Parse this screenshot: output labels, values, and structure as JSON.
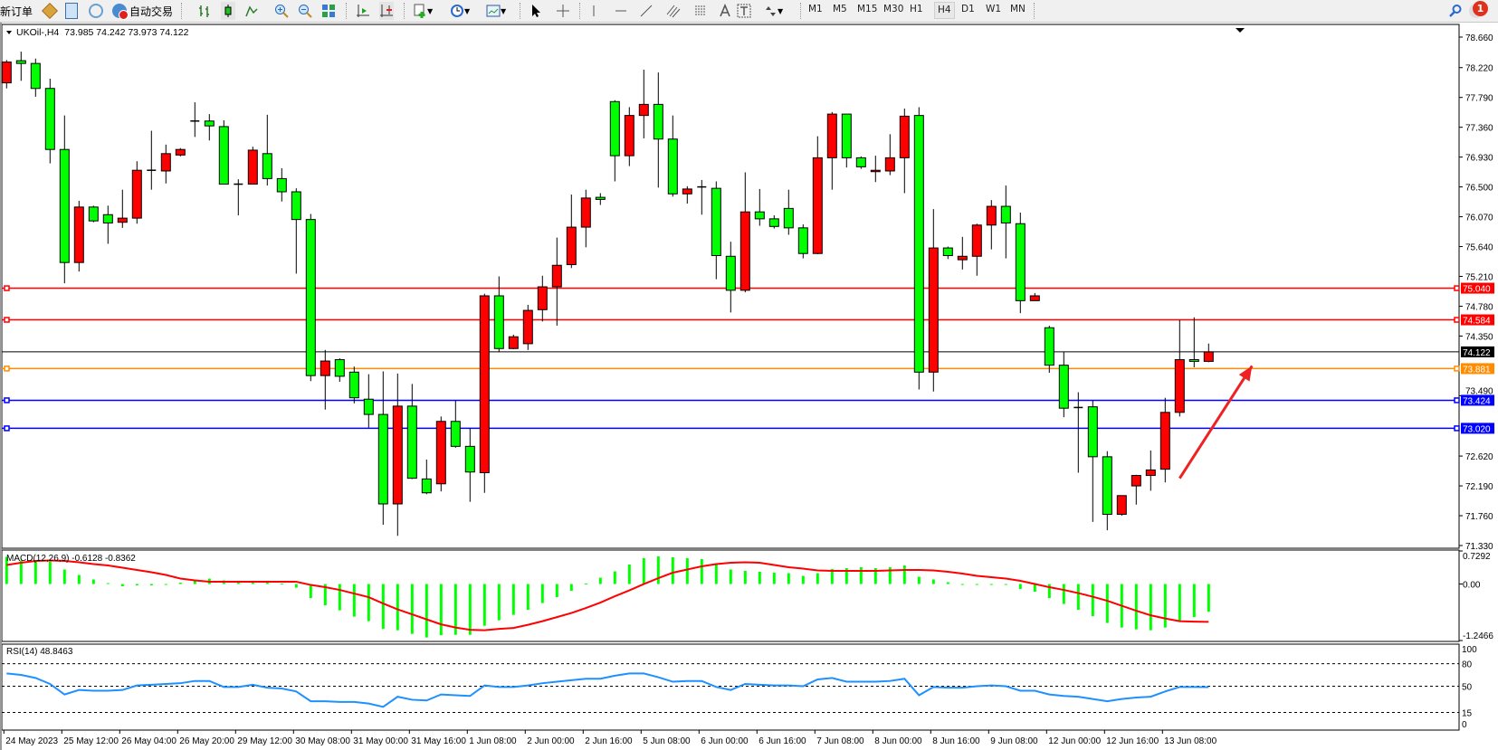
{
  "toolbar": {
    "new_order_label": "新订单",
    "auto_trading_label": "自动交易",
    "timeframes": [
      "M1",
      "M5",
      "M15",
      "M30",
      "H1",
      "H4",
      "D1",
      "W1",
      "MN"
    ],
    "active_timeframe": "H4",
    "notification_count": "1",
    "icons": [
      "market-watch-icon",
      "data-window-icon",
      "navigator-icon",
      "auto-trading-icon",
      "bar-chart-icon",
      "candlestick-icon",
      "line-chart-icon",
      "zoom-in-icon",
      "zoom-out-icon",
      "tile-windows-icon",
      "chart-shift-icon",
      "auto-scroll-icon",
      "new-chart-icon",
      "periods-icon",
      "templates-icon",
      "cursor-icon",
      "crosshair-icon",
      "vertical-line-icon",
      "horizontal-line-icon",
      "trendline-icon",
      "equidistant-channel-icon",
      "fibonacci-icon",
      "text-icon",
      "text-label-icon",
      "arrows-icon",
      "search-icon",
      "chat-icon"
    ]
  },
  "chart": {
    "symbol_header": "UKOil-,H4",
    "header_ohlc": "73.985 74.242 73.973 74.122",
    "up_color": "#ff0000",
    "down_color": "#00ff00",
    "price_ticks": [
      "78.660",
      "78.220",
      "77.790",
      "77.360",
      "76.930",
      "76.500",
      "76.070",
      "75.640",
      "75.210",
      "74.780",
      "74.350",
      "73.490",
      "72.620",
      "72.190",
      "71.760",
      "71.330"
    ],
    "price_tick_values": [
      78.66,
      78.22,
      77.79,
      77.36,
      76.93,
      76.5,
      76.07,
      75.64,
      75.21,
      74.78,
      74.35,
      73.49,
      72.62,
      72.19,
      71.76,
      71.33
    ],
    "price_range": [
      71.33,
      78.66
    ],
    "current_price": {
      "label": "74.122",
      "value": 74.122,
      "color": "#000000"
    },
    "horizontal_lines": [
      {
        "label": "75.040",
        "value": 75.04,
        "color": "#ff0000"
      },
      {
        "label": "74.584",
        "value": 74.584,
        "color": "#ff0000"
      },
      {
        "label": "73.881",
        "value": 73.881,
        "color": "#ff8c00"
      },
      {
        "label": "73.424",
        "value": 73.424,
        "color": "#0000ff"
      },
      {
        "label": "73.020",
        "value": 73.02,
        "color": "#0000ff"
      }
    ],
    "annotation_arrow": {
      "color": "#ee2222",
      "from_bar": 81,
      "from_price": 72.3,
      "to_bar": 86,
      "to_price": 73.92
    },
    "time_labels": [
      "24 May 2023",
      "25 May 12:00",
      "26 May 04:00",
      "26 May 20:00",
      "29 May 12:00",
      "30 May 08:00",
      "31 May 00:00",
      "31 May 16:00",
      "1 Jun 08:00",
      "2 Jun 00:00",
      "2 Jun 16:00",
      "5 Jun 08:00",
      "6 Jun 00:00",
      "6 Jun 16:00",
      "7 Jun 08:00",
      "8 Jun 00:00",
      "8 Jun 16:00",
      "9 Jun 08:00",
      "12 Jun 00:00",
      "12 Jun 16:00",
      "13 Jun 08:00"
    ]
  },
  "macd": {
    "label": "MACD(12,26,9) -0.6128 -0.8362",
    "ticks": [
      "0.7292",
      "0.00",
      "-1.2466"
    ],
    "range": [
      -1.2466,
      0.7292
    ],
    "histogram_color": "#00ff00",
    "signal_color": "#ff0000"
  },
  "rsi": {
    "label": "RSI(14) 48.8463",
    "ticks": [
      "100",
      "80",
      "50",
      "15",
      "0"
    ],
    "levels": [
      80,
      50,
      15
    ],
    "line_color": "#1e90ff"
  },
  "chart_data": {
    "type": "candlestick",
    "ohlc_format": [
      "open",
      "high",
      "low",
      "close"
    ],
    "ohlc": [
      [
        78.0,
        78.33,
        77.92,
        78.3
      ],
      [
        78.32,
        78.45,
        78.03,
        78.28
      ],
      [
        78.28,
        78.35,
        77.8,
        77.92
      ],
      [
        77.92,
        78.06,
        76.84,
        77.04
      ],
      [
        77.04,
        77.53,
        75.11,
        75.41
      ],
      [
        75.41,
        76.3,
        75.28,
        76.21
      ],
      [
        76.21,
        76.23,
        75.99,
        76.01
      ],
      [
        76.1,
        76.23,
        75.68,
        75.98
      ],
      [
        75.99,
        76.46,
        75.91,
        76.05
      ],
      [
        76.05,
        76.87,
        75.97,
        76.74
      ],
      [
        76.74,
        77.31,
        76.46,
        76.74
      ],
      [
        76.73,
        77.11,
        76.55,
        76.98
      ],
      [
        76.96,
        77.06,
        76.94,
        77.04
      ],
      [
        77.45,
        77.72,
        77.22,
        77.45
      ],
      [
        77.45,
        77.55,
        77.17,
        77.38
      ],
      [
        77.37,
        77.46,
        76.54,
        76.54
      ],
      [
        76.54,
        76.61,
        76.09,
        76.54
      ],
      [
        76.54,
        77.08,
        76.54,
        77.03
      ],
      [
        76.98,
        77.54,
        76.52,
        76.62
      ],
      [
        76.62,
        76.77,
        76.29,
        76.43
      ],
      [
        76.43,
        76.48,
        75.25,
        76.03
      ],
      [
        76.03,
        76.11,
        73.7,
        73.78
      ],
      [
        73.78,
        74.15,
        73.29,
        73.99
      ],
      [
        74.01,
        74.03,
        73.69,
        73.77
      ],
      [
        73.83,
        73.91,
        73.38,
        73.46
      ],
      [
        73.44,
        73.8,
        73.03,
        73.22
      ],
      [
        73.22,
        73.84,
        71.63,
        71.93
      ],
      [
        71.93,
        73.81,
        71.47,
        73.34
      ],
      [
        73.34,
        73.66,
        72.29,
        72.3
      ],
      [
        72.29,
        72.57,
        72.07,
        72.09
      ],
      [
        72.22,
        73.19,
        72.11,
        73.12
      ],
      [
        73.12,
        73.42,
        72.74,
        72.76
      ],
      [
        72.76,
        73.02,
        71.96,
        72.39
      ],
      [
        72.38,
        74.96,
        72.09,
        74.93
      ],
      [
        74.93,
        75.21,
        74.12,
        74.17
      ],
      [
        74.17,
        74.37,
        74.16,
        74.34
      ],
      [
        74.24,
        74.8,
        74.15,
        74.72
      ],
      [
        74.73,
        75.22,
        74.56,
        75.06
      ],
      [
        75.06,
        75.77,
        74.5,
        75.37
      ],
      [
        75.38,
        76.39,
        75.33,
        75.92
      ],
      [
        75.92,
        76.46,
        75.63,
        76.34
      ],
      [
        76.35,
        76.41,
        76.24,
        76.32
      ],
      [
        77.73,
        77.75,
        76.58,
        76.95
      ],
      [
        76.95,
        77.65,
        76.8,
        77.53
      ],
      [
        77.53,
        78.19,
        77.2,
        77.69
      ],
      [
        77.69,
        78.15,
        76.49,
        77.19
      ],
      [
        77.19,
        77.53,
        76.36,
        76.4
      ],
      [
        76.4,
        76.51,
        76.26,
        76.47
      ],
      [
        76.5,
        76.6,
        76.1,
        76.5
      ],
      [
        76.48,
        76.58,
        75.17,
        75.51
      ],
      [
        75.5,
        75.71,
        74.69,
        75.01
      ],
      [
        75.01,
        76.71,
        74.98,
        76.14
      ],
      [
        76.14,
        76.47,
        75.94,
        76.04
      ],
      [
        76.04,
        76.09,
        75.9,
        75.93
      ],
      [
        76.19,
        76.46,
        75.81,
        75.91
      ],
      [
        75.91,
        75.96,
        75.47,
        75.54
      ],
      [
        75.54,
        77.23,
        75.53,
        76.92
      ],
      [
        76.92,
        77.58,
        76.46,
        77.55
      ],
      [
        77.55,
        77.55,
        76.78,
        76.92
      ],
      [
        76.92,
        76.94,
        76.76,
        76.79
      ],
      [
        76.72,
        76.95,
        76.57,
        76.74
      ],
      [
        76.73,
        77.26,
        76.67,
        76.92
      ],
      [
        76.92,
        77.63,
        76.41,
        77.52
      ],
      [
        77.53,
        77.65,
        73.58,
        73.83
      ],
      [
        73.83,
        76.18,
        73.55,
        75.62
      ],
      [
        75.62,
        75.64,
        75.46,
        75.51
      ],
      [
        75.45,
        75.78,
        75.31,
        75.5
      ],
      [
        75.5,
        75.97,
        75.22,
        75.95
      ],
      [
        75.95,
        76.31,
        75.6,
        76.22
      ],
      [
        76.22,
        76.52,
        75.47,
        75.98
      ],
      [
        75.97,
        76.13,
        74.68,
        74.86
      ],
      [
        74.86,
        74.97,
        74.86,
        74.93
      ],
      [
        74.47,
        74.5,
        73.82,
        73.93
      ],
      [
        73.93,
        74.12,
        73.18,
        73.31
      ],
      [
        73.32,
        73.54,
        72.38,
        73.32
      ],
      [
        73.33,
        73.42,
        71.67,
        72.61
      ],
      [
        72.61,
        72.69,
        71.55,
        71.78
      ],
      [
        71.78,
        72.05,
        71.76,
        72.05
      ],
      [
        72.19,
        72.35,
        71.92,
        72.34
      ],
      [
        72.34,
        72.7,
        72.12,
        72.42
      ],
      [
        72.43,
        73.46,
        72.24,
        73.25
      ],
      [
        73.25,
        74.58,
        73.19,
        74.01
      ],
      [
        74.01,
        74.62,
        73.9,
        73.985
      ],
      [
        73.985,
        74.242,
        73.973,
        74.122
      ]
    ],
    "macd_histogram": [
      0.6,
      0.52,
      0.49,
      0.49,
      0.32,
      0.2,
      0.1,
      0.02,
      -0.05,
      -0.03,
      -0.03,
      -0.02,
      0.03,
      0.08,
      0.12,
      0.08,
      0.04,
      0.03,
      0.03,
      0.01,
      -0.08,
      -0.31,
      -0.47,
      -0.58,
      -0.72,
      -0.82,
      -0.99,
      -1.02,
      -1.1,
      -1.18,
      -1.13,
      -1.12,
      -1.12,
      -0.92,
      -0.8,
      -0.68,
      -0.57,
      -0.42,
      -0.29,
      -0.15,
      0.01,
      0.14,
      0.28,
      0.43,
      0.57,
      0.61,
      0.59,
      0.57,
      0.55,
      0.44,
      0.32,
      0.29,
      0.27,
      0.25,
      0.24,
      0.18,
      0.24,
      0.33,
      0.35,
      0.37,
      0.35,
      0.37,
      0.41,
      0.16,
      0.1,
      0.04,
      -0.02,
      -0.02,
      -0.01,
      -0.01,
      -0.11,
      -0.17,
      -0.31,
      -0.44,
      -0.57,
      -0.71,
      -0.86,
      -0.96,
      -1.0,
      -1.02,
      -0.96,
      -0.83,
      -0.73,
      -0.6128
    ],
    "macd_signal": [
      0.42,
      0.47,
      0.51,
      0.52,
      0.51,
      0.48,
      0.44,
      0.41,
      0.36,
      0.31,
      0.26,
      0.2,
      0.12,
      0.08,
      0.05,
      0.05,
      0.05,
      0.05,
      0.05,
      0.05,
      0.05,
      -0.02,
      -0.07,
      -0.13,
      -0.21,
      -0.29,
      -0.43,
      -0.56,
      -0.67,
      -0.78,
      -0.89,
      -0.96,
      -1.01,
      -1.02,
      -0.99,
      -0.97,
      -0.9,
      -0.82,
      -0.73,
      -0.64,
      -0.53,
      -0.41,
      -0.27,
      -0.14,
      0.0,
      0.13,
      0.25,
      0.32,
      0.39,
      0.44,
      0.47,
      0.48,
      0.47,
      0.42,
      0.37,
      0.34,
      0.3,
      0.29,
      0.29,
      0.29,
      0.29,
      0.3,
      0.31,
      0.31,
      0.3,
      0.27,
      0.23,
      0.18,
      0.15,
      0.12,
      0.07,
      0.0,
      -0.07,
      -0.13,
      -0.2,
      -0.28,
      -0.37,
      -0.48,
      -0.59,
      -0.69,
      -0.76,
      -0.82,
      -0.83,
      -0.8362
    ],
    "rsi": [
      67,
      65,
      61,
      53,
      39,
      45,
      44,
      44,
      45,
      51,
      52,
      53,
      54,
      57,
      57,
      49,
      49,
      52,
      48,
      47,
      43,
      30,
      30,
      29,
      29,
      27,
      22.5,
      36,
      32,
      31,
      39,
      38,
      37,
      51,
      49,
      49,
      51,
      54,
      56,
      58,
      60,
      60,
      64,
      67,
      67,
      62,
      56,
      57,
      57,
      49,
      45,
      53,
      52,
      51,
      51,
      50,
      59,
      61,
      56,
      56,
      56,
      57,
      60,
      38,
      49,
      48,
      48,
      50,
      51,
      50,
      44,
      44,
      39,
      37,
      36,
      33,
      30,
      33,
      35,
      36,
      43,
      49,
      49,
      48.8463
    ]
  }
}
